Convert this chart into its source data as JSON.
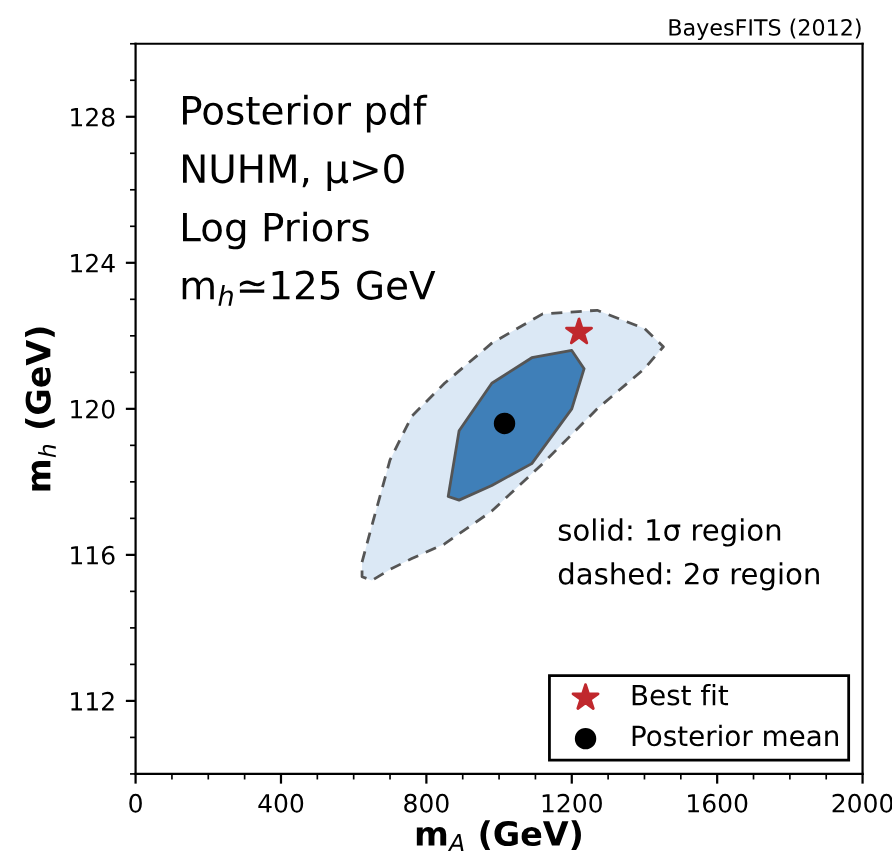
{
  "chart_data": {
    "type": "area",
    "xlabel": "m$_{A}$ (GeV)",
    "ylabel": "m$_{h}$ (GeV)",
    "xlim": [
      0,
      2000
    ],
    "xticks": [
      0,
      400,
      800,
      1200,
      1600,
      2000
    ],
    "ylim": [
      110,
      130
    ],
    "yticks": [
      112,
      116,
      120,
      124,
      128
    ],
    "series": [
      {
        "color": "#dbe8f5",
        "line_style": "dashed",
        "x": [
          623,
          650,
          700,
          760,
          850,
          980,
          1120,
          1270,
          1400,
          1452,
          1400,
          1270,
          1120,
          980,
          850,
          760,
          700,
          650,
          623
        ],
        "values": [
          115.8,
          116.8,
          118.6,
          119.8,
          120.7,
          121.8,
          122.6,
          122.7,
          122.2,
          121.7,
          121.1,
          120.0,
          118.5,
          117.2,
          116.3,
          115.9,
          115.6,
          115.3,
          115.4
        ]
      },
      {
        "color": "#3f7fb8",
        "line_style": "solid",
        "x": [
          860,
          890,
          980,
          1090,
          1200,
          1234,
          1200,
          1090,
          980,
          890
        ],
        "values": [
          117.6,
          119.4,
          120.7,
          121.4,
          121.6,
          121.1,
          120.0,
          118.5,
          117.9,
          117.5
        ]
      },
      {
        "type": "scatter",
        "name": "Best fit",
        "color": "#c0282d",
        "marker": "star",
        "x": [
          1220
        ],
        "values": [
          122.1
        ]
      },
      {
        "type": "scatter",
        "name": "Posterior mean",
        "color": "#000000",
        "marker": "circle",
        "x": [
          1015
        ],
        "values": [
          119.6
        ]
      }
    ],
    "legend": "bottom right",
    "annotations": [
      "Posterior pdf",
      "NUHM, μ>0",
      "Log Priors",
      "m$_{h}$≃125 GeV",
      "solid: 1σ region",
      "dashed: 2σ region",
      "BayesFITS (2012)"
    ]
  }
}
